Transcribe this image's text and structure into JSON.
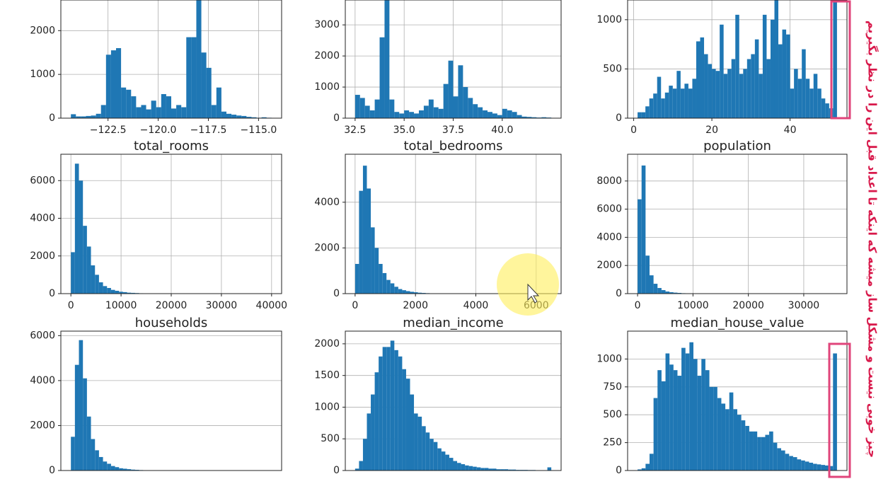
{
  "chart_data": [
    {
      "type": "histogram",
      "color": "#1f77b4",
      "grid": true,
      "xlim": [
        -124.85,
        -113.85
      ],
      "ylim": [
        0,
        2700
      ],
      "xticks": [
        {
          "value": -122.5,
          "label": "−122.5"
        },
        {
          "value": -120,
          "label": "−120.0"
        },
        {
          "value": -117.5,
          "label": "−117.5"
        },
        {
          "value": -115,
          "label": "−115.0"
        }
      ],
      "yticks": [
        0,
        1000,
        2000
      ],
      "bins": [
        -124.35,
        -124.1,
        -123.85,
        -123.6,
        -123.35,
        -123.1,
        -122.85,
        -122.6,
        -122.35,
        -122.1,
        -121.85,
        -121.6,
        -121.35,
        -121.1,
        -120.85,
        -120.6,
        -120.35,
        -120.1,
        -119.85,
        -119.6,
        -119.35,
        -119.1,
        -118.85,
        -118.6,
        -118.35,
        -118.1,
        -117.85,
        -117.6,
        -117.35,
        -117.1,
        -116.85,
        -116.6,
        -116.35,
        -116.1,
        -115.85,
        -115.6,
        -115.35,
        -115.1,
        -114.85,
        -114.6,
        -114.35
      ],
      "values": [
        90,
        40,
        40,
        50,
        60,
        100,
        300,
        1450,
        1550,
        1600,
        700,
        650,
        500,
        250,
        300,
        200,
        400,
        250,
        550,
        500,
        220,
        300,
        250,
        1850,
        1850,
        2700,
        1500,
        1150,
        300,
        700,
        150,
        100,
        80,
        60,
        50,
        30,
        20,
        10,
        20,
        10
      ]
    },
    {
      "type": "histogram",
      "color": "#1f77b4",
      "grid": true,
      "xlim": [
        32,
        43
      ],
      "ylim": [
        0,
        3800
      ],
      "xticks": [
        32.5,
        {
          "value": 35,
          "label": "35.0"
        },
        37.5,
        {
          "value": 40,
          "label": "40.0"
        }
      ],
      "yticks": [
        0,
        1000,
        2000,
        3000
      ],
      "bins": [
        32.5,
        32.75,
        33,
        33.25,
        33.5,
        33.75,
        34,
        34.25,
        34.5,
        34.75,
        35,
        35.25,
        35.5,
        35.75,
        36,
        36.25,
        36.5,
        36.75,
        37,
        37.25,
        37.5,
        37.75,
        38,
        38.25,
        38.5,
        38.75,
        39,
        39.25,
        39.5,
        39.75,
        40,
        40.25,
        40.5,
        40.75,
        41,
        41.25,
        41.5,
        41.75,
        42,
        42.25,
        42.5
      ],
      "values": [
        750,
        650,
        400,
        250,
        600,
        2600,
        3800,
        600,
        200,
        150,
        250,
        200,
        150,
        250,
        400,
        600,
        350,
        300,
        1100,
        1850,
        700,
        1700,
        1000,
        650,
        450,
        350,
        250,
        200,
        150,
        100,
        300,
        250,
        200,
        100,
        50,
        40,
        30,
        20,
        30,
        20
      ]
    },
    {
      "type": "histogram",
      "color": "#1f77b4",
      "grid": true,
      "xlim": [
        -1.55,
        54.55
      ],
      "ylim": [
        0,
        1200
      ],
      "xticks": [
        0,
        20,
        40
      ],
      "yticks": [
        0,
        500,
        1000
      ],
      "bins": [
        1,
        2,
        3,
        4,
        5,
        6,
        7,
        8,
        9,
        10,
        11,
        12,
        13,
        14,
        15,
        16,
        17,
        18,
        19,
        20,
        21,
        22,
        23,
        24,
        25,
        26,
        27,
        28,
        29,
        30,
        31,
        32,
        33,
        34,
        35,
        36,
        37,
        38,
        39,
        40,
        41,
        42,
        43,
        44,
        45,
        46,
        47,
        48,
        49,
        50,
        51,
        52
      ],
      "values": [
        60,
        60,
        120,
        200,
        250,
        420,
        200,
        260,
        330,
        300,
        480,
        300,
        350,
        300,
        400,
        780,
        820,
        650,
        550,
        500,
        480,
        950,
        450,
        500,
        600,
        1050,
        450,
        500,
        600,
        650,
        800,
        450,
        1050,
        600,
        1000,
        1200,
        750,
        900,
        850,
        300,
        500,
        400,
        700,
        400,
        300,
        450,
        300,
        200,
        150,
        100,
        1270
      ]
    },
    {
      "type": "histogram",
      "title": "total_rooms",
      "color": "#1f77b4",
      "grid": true,
      "xlim": [
        -2000,
        42000
      ],
      "ylim": [
        0,
        7400
      ],
      "xticks": [
        0,
        10000,
        20000,
        30000,
        40000
      ],
      "yticks": [
        0,
        2000,
        4000,
        6000
      ],
      "bins": [
        0,
        800,
        1600,
        2400,
        3200,
        4000,
        4800,
        5600,
        6400,
        7200,
        8000,
        8800,
        9600,
        10400,
        11200,
        12000,
        12800,
        13600,
        14400,
        15200,
        16000,
        16800,
        17600,
        18400,
        19200,
        20000,
        20800,
        21600,
        22400,
        23200,
        24000,
        24800,
        25600,
        26400,
        27200,
        28000,
        28800,
        29600,
        30400,
        31200,
        32000,
        32800,
        33600,
        34400,
        35200,
        36000,
        36800,
        37600,
        38400,
        39200,
        40000
      ],
      "values": [
        2200,
        6900,
        6000,
        3600,
        2500,
        1500,
        1000,
        600,
        400,
        300,
        200,
        150,
        100,
        80,
        50,
        40,
        30,
        20,
        15,
        10,
        8,
        6,
        5,
        4,
        3,
        2,
        2,
        1,
        1,
        1,
        1,
        1,
        1,
        0,
        0,
        0,
        0,
        0,
        0,
        0,
        0,
        0,
        0,
        0,
        0,
        0,
        0,
        0,
        0,
        1
      ]
    },
    {
      "type": "histogram",
      "title": "total_bedrooms",
      "color": "#1f77b4",
      "grid": true,
      "xlim": [
        -325,
        6825
      ],
      "ylim": [
        0,
        6100
      ],
      "xticks": [
        0,
        2000,
        4000,
        6000
      ],
      "yticks": [
        0,
        2000,
        4000
      ],
      "bins": [
        0,
        130,
        260,
        390,
        520,
        650,
        780,
        910,
        1040,
        1170,
        1300,
        1430,
        1560,
        1690,
        1820,
        1950,
        2080,
        2210,
        2340,
        2470,
        2600,
        2730,
        2860,
        2990,
        3120,
        3250,
        3380,
        3510,
        3640,
        3770,
        3900,
        4030,
        4160,
        4290,
        4420,
        4550,
        4680,
        4810,
        4940,
        5070,
        5200,
        5330,
        5460,
        5590,
        5720,
        5850,
        5980,
        6110,
        6240,
        6370,
        6500
      ],
      "values": [
        1300,
        4500,
        5600,
        4600,
        2900,
        2000,
        1300,
        900,
        600,
        450,
        300,
        200,
        150,
        110,
        80,
        60,
        40,
        30,
        20,
        15,
        10,
        8,
        6,
        5,
        4,
        3,
        3,
        2,
        2,
        1,
        1,
        1,
        1,
        1,
        0,
        0,
        0,
        0,
        0,
        0,
        0,
        0,
        0,
        0,
        0,
        0,
        0,
        0,
        0,
        1
      ]
    },
    {
      "type": "histogram",
      "title": "population",
      "color": "#1f77b4",
      "grid": true,
      "xlim": [
        -1800,
        37800
      ],
      "ylim": [
        0,
        9900
      ],
      "xticks": [
        0,
        10000,
        20000,
        30000
      ],
      "yticks": [
        0,
        2000,
        4000,
        6000,
        8000
      ],
      "bins": [
        0,
        720,
        1440,
        2160,
        2880,
        3600,
        4320,
        5040,
        5760,
        6480,
        7200,
        7920,
        8640,
        9360,
        10080,
        10800,
        11520,
        12240,
        12960,
        13680,
        14400,
        15120,
        15840,
        16560,
        17280,
        18000,
        18720,
        19440,
        20160,
        20880,
        21600,
        22320,
        23040,
        23760,
        24480,
        25200,
        25920,
        26640,
        27360,
        28080,
        28800,
        29520,
        30240,
        30960,
        31680,
        32400,
        33120,
        33840,
        34560,
        35280,
        36000
      ],
      "values": [
        6700,
        9100,
        2700,
        1300,
        700,
        400,
        250,
        150,
        100,
        70,
        50,
        30,
        20,
        15,
        10,
        8,
        6,
        5,
        4,
        3,
        2,
        2,
        1,
        1,
        1,
        1,
        1,
        0,
        0,
        0,
        0,
        0,
        0,
        0,
        0,
        0,
        0,
        0,
        0,
        0,
        0,
        0,
        0,
        0,
        0,
        0,
        0,
        0,
        0,
        1
      ]
    },
    {
      "type": "histogram",
      "title": "households",
      "color": "#1f77b4",
      "grid": true,
      "xlim": [
        -305,
        6405
      ],
      "ylim": [
        0,
        6200
      ],
      "yticks": [
        0,
        2000,
        4000,
        6000
      ],
      "bins": [
        0,
        122,
        244,
        366,
        488,
        610,
        732,
        854,
        976,
        1098,
        1220,
        1342,
        1464,
        1586,
        1708,
        1830,
        1952,
        2074,
        2196,
        2318,
        2440,
        2562,
        2684,
        2806,
        2928,
        3050,
        3172,
        3294,
        3416,
        3538,
        3660,
        3782,
        3904,
        4026,
        4148,
        4270,
        4392,
        4514,
        4636,
        4758,
        4880,
        5002,
        5124,
        5246,
        5368,
        5490,
        5612,
        5734,
        5856,
        5978,
        6100
      ],
      "values": [
        1500,
        4700,
        5800,
        4100,
        2400,
        1400,
        900,
        600,
        400,
        300,
        200,
        150,
        100,
        80,
        60,
        40,
        30,
        20,
        15,
        10,
        8,
        6,
        5,
        4,
        3,
        3,
        2,
        2,
        1,
        1,
        1,
        1,
        0,
        0,
        0,
        0,
        0,
        0,
        0,
        0,
        0,
        0,
        0,
        0,
        0,
        0,
        0,
        0,
        0,
        1
      ]
    },
    {
      "type": "histogram",
      "title": "median_income",
      "color": "#1f77b4",
      "grid": true,
      "xlim": [
        -0.25,
        16.25
      ],
      "ylim": [
        0,
        2200
      ],
      "yticks": [
        0,
        500,
        1000,
        1500,
        2000
      ],
      "bins": [
        0.5,
        0.8,
        1.1,
        1.4,
        1.7,
        2,
        2.3,
        2.6,
        2.9,
        3.2,
        3.5,
        3.8,
        4.1,
        4.4,
        4.7,
        5,
        5.3,
        5.6,
        5.9,
        6.2,
        6.5,
        6.8,
        7.1,
        7.4,
        7.7,
        8,
        8.3,
        8.6,
        8.9,
        9.2,
        9.5,
        9.8,
        10.1,
        10.4,
        10.7,
        11,
        11.3,
        11.6,
        11.9,
        12.2,
        12.5,
        12.8,
        13.1,
        13.4,
        13.7,
        14,
        14.3,
        14.6,
        14.9,
        15.2,
        15.5
      ],
      "values": [
        30,
        150,
        500,
        900,
        1200,
        1550,
        1800,
        1950,
        1950,
        2050,
        1900,
        1800,
        1600,
        1450,
        1200,
        900,
        850,
        700,
        600,
        500,
        450,
        350,
        300,
        250,
        200,
        150,
        120,
        100,
        80,
        70,
        60,
        50,
        40,
        40,
        30,
        30,
        20,
        20,
        20,
        15,
        15,
        10,
        10,
        10,
        8,
        8,
        5,
        5,
        5,
        50
      ]
    },
    {
      "type": "histogram",
      "title": "median_house_value",
      "color": "#1f77b4",
      "grid": true,
      "xlim": [
        -9250,
        524250
      ],
      "ylim": [
        0,
        1250
      ],
      "yticks": [
        0,
        250,
        500,
        750,
        1000
      ],
      "bins": [
        15000,
        24700,
        34400,
        44100,
        53800,
        63500,
        73200,
        82900,
        92600,
        102300,
        112000,
        121700,
        131400,
        141100,
        150800,
        160500,
        170200,
        179900,
        189600,
        199300,
        209000,
        218700,
        228400,
        238100,
        247800,
        257500,
        267200,
        276900,
        286600,
        296300,
        306000,
        315700,
        325400,
        335100,
        344800,
        354500,
        364200,
        373900,
        383600,
        393300,
        403000,
        412700,
        422400,
        432100,
        441800,
        451500,
        461200,
        470900,
        480600,
        490300,
        500000
      ],
      "values": [
        10,
        20,
        60,
        150,
        650,
        900,
        800,
        1050,
        950,
        900,
        850,
        1100,
        1050,
        1150,
        1000,
        850,
        1000,
        900,
        750,
        750,
        650,
        600,
        550,
        700,
        550,
        500,
        450,
        400,
        350,
        350,
        300,
        300,
        320,
        350,
        250,
        200,
        180,
        150,
        130,
        120,
        100,
        90,
        80,
        70,
        60,
        55,
        50,
        45,
        40,
        1050
      ]
    }
  ],
  "annotation": "چیز خوبی نیست و مشکل ساز میشه که اینکه تا اعداد قبل این را در نظر بگیریم"
}
